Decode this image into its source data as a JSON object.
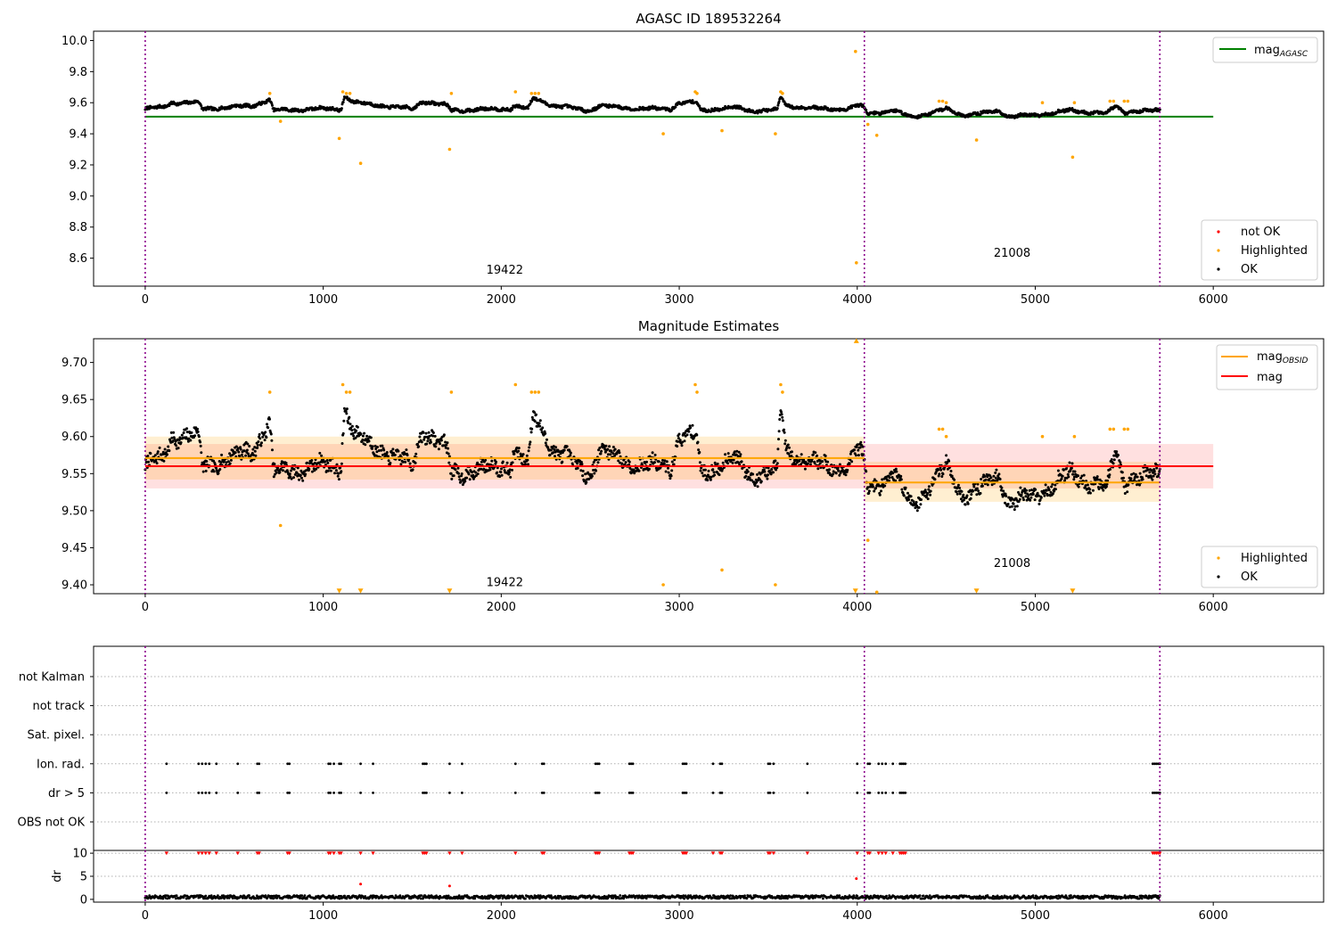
{
  "chart_data": [
    {
      "type": "scatter",
      "title": "AGASC ID 189532264",
      "xlabel": "",
      "ylabel": "",
      "xlim": [
        -290,
        6620
      ],
      "ylim": [
        8.42,
        10.06
      ],
      "xticks": [
        0,
        1000,
        2000,
        3000,
        4000,
        5000,
        6000
      ],
      "yticks": [
        8.6,
        8.8,
        9.0,
        9.2,
        9.4,
        9.6,
        9.8,
        10.0
      ],
      "ytick_labels": [
        "8.6",
        "8.8",
        "9.0",
        "9.2",
        "9.4",
        "9.6",
        "9.8",
        "10.0"
      ],
      "vlines": [
        0,
        4040,
        5700
      ],
      "hline": {
        "name": "magAGASC",
        "label_main": "mag",
        "label_sub": "AGASC",
        "y": 9.51,
        "x": [
          0,
          6000
        ],
        "color": "#008000"
      },
      "obsid_labels": [
        {
          "text": "19422",
          "x": 2020,
          "y": 8.5
        },
        {
          "text": "21008",
          "x": 4870,
          "y": 8.61
        }
      ],
      "legend_top": {
        "placement": "top-right"
      },
      "legend_bottom": {
        "placement": "lower-right",
        "entries": [
          {
            "label": "not OK",
            "color": "#ff0000"
          },
          {
            "label": "Highlighted",
            "color": "#ffa500"
          },
          {
            "label": "OK",
            "color": "#000000"
          }
        ]
      },
      "series": [
        {
          "name": "OK",
          "color": "#000000",
          "model": {
            "start": 0,
            "end": 5700,
            "step": 3,
            "breaks": [
              [
                0,
                9.56
              ],
              [
                100,
                9.57
              ],
              [
                150,
                9.6
              ],
              [
                300,
                9.6
              ],
              [
                320,
                9.56
              ],
              [
                600,
                9.58
              ],
              [
                700,
                9.62
              ],
              [
                720,
                9.55
              ],
              [
                950,
                9.56
              ],
              [
                1100,
                9.56
              ],
              [
                1120,
                9.64
              ],
              [
                1180,
                9.6
              ],
              [
                1500,
                9.56
              ],
              [
                1560,
                9.61
              ],
              [
                1700,
                9.58
              ],
              [
                1720,
                9.55
              ],
              [
                2000,
                9.56
              ],
              [
                2050,
                9.56
              ],
              [
                2070,
                9.58
              ],
              [
                2150,
                9.56
              ],
              [
                2180,
                9.63
              ],
              [
                2300,
                9.58
              ],
              [
                2500,
                9.55
              ],
              [
                2550,
                9.58
              ],
              [
                2800,
                9.56
              ],
              [
                2950,
                9.56
              ],
              [
                3000,
                9.6
              ],
              [
                3100,
                9.6
              ],
              [
                3120,
                9.55
              ],
              [
                3300,
                9.57
              ],
              [
                3400,
                9.55
              ],
              [
                3550,
                9.55
              ],
              [
                3570,
                9.64
              ],
              [
                3600,
                9.58
              ],
              [
                3800,
                9.56
              ],
              [
                3950,
                9.56
              ],
              [
                4000,
                9.58
              ],
              [
                4040,
                9.57
              ],
              [
                4060,
                9.53
              ],
              [
                4200,
                9.55
              ],
              [
                4300,
                9.51
              ],
              [
                4400,
                9.53
              ],
              [
                4500,
                9.56
              ],
              [
                4600,
                9.52
              ],
              [
                4700,
                9.53
              ],
              [
                4800,
                9.55
              ],
              [
                4850,
                9.51
              ],
              [
                5000,
                9.52
              ],
              [
                5200,
                9.55
              ],
              [
                5400,
                9.53
              ],
              [
                5450,
                9.58
              ],
              [
                5500,
                9.54
              ],
              [
                5700,
                9.55
              ]
            ],
            "noise": 0.009,
            "wobble": 0.012,
            "seed": 7
          }
        },
        {
          "name": "Highlighted",
          "color": "#ffa500",
          "points": [
            [
              700,
              9.66
            ],
            [
              760,
              9.48
            ],
            [
              1090,
              9.37
            ],
            [
              1110,
              9.67
            ],
            [
              1130,
              9.66
            ],
            [
              1150,
              9.66
            ],
            [
              1210,
              9.21
            ],
            [
              1710,
              9.3
            ],
            [
              1720,
              9.66
            ],
            [
              2080,
              9.67
            ],
            [
              2170,
              9.66
            ],
            [
              2190,
              9.66
            ],
            [
              2210,
              9.66
            ],
            [
              2910,
              9.4
            ],
            [
              3090,
              9.67
            ],
            [
              3100,
              9.66
            ],
            [
              3240,
              9.42
            ],
            [
              3540,
              9.4
            ],
            [
              3570,
              9.67
            ],
            [
              3580,
              9.66
            ],
            [
              3990,
              9.93
            ],
            [
              3995,
              8.57
            ],
            [
              4060,
              9.46
            ],
            [
              4110,
              9.39
            ],
            [
              4460,
              9.61
            ],
            [
              4480,
              9.61
            ],
            [
              4500,
              9.6
            ],
            [
              4670,
              9.36
            ],
            [
              5040,
              9.6
            ],
            [
              5210,
              9.25
            ],
            [
              5220,
              9.6
            ],
            [
              5420,
              9.61
            ],
            [
              5440,
              9.61
            ],
            [
              5500,
              9.61
            ],
            [
              5520,
              9.61
            ]
          ]
        }
      ]
    },
    {
      "type": "scatter",
      "title": "Magnitude Estimates",
      "xlabel": "",
      "ylabel": "",
      "xlim": [
        -290,
        6620
      ],
      "ylim": [
        9.388,
        9.732
      ],
      "xticks": [
        0,
        1000,
        2000,
        3000,
        4000,
        5000,
        6000
      ],
      "yticks": [
        9.4,
        9.45,
        9.5,
        9.55,
        9.6,
        9.65,
        9.7
      ],
      "ytick_labels": [
        "9.40",
        "9.45",
        "9.50",
        "9.55",
        "9.60",
        "9.65",
        "9.70"
      ],
      "vlines": [
        0,
        4040,
        5700
      ],
      "bands": [
        {
          "y0": 9.53,
          "y1": 9.59,
          "x": [
            0,
            6000
          ],
          "color": "rgba(255,0,0,0.12)"
        },
        {
          "y0": 9.542,
          "y1": 9.6,
          "x": [
            0,
            4040
          ],
          "color": "rgba(255,165,0,0.18)"
        },
        {
          "y0": 9.512,
          "y1": 9.566,
          "x": [
            4040,
            5700
          ],
          "color": "rgba(255,165,0,0.18)"
        }
      ],
      "lines": [
        {
          "name": "magOBSID",
          "color": "#ffa500",
          "segments": [
            [
              0,
              4040,
              9.571
            ],
            [
              4040,
              5700,
              9.538
            ]
          ]
        },
        {
          "name": "mag",
          "color": "#ff0000",
          "segments": [
            [
              0,
              6000,
              9.56
            ]
          ]
        }
      ],
      "obsid_labels": [
        {
          "text": "19422",
          "x": 2020,
          "y": 9.398
        },
        {
          "text": "21008",
          "x": 4870,
          "y": 9.424
        }
      ],
      "legend_top": {
        "placement": "top-right",
        "entries": [
          {
            "label_main": "mag",
            "label_sub": "OBSID",
            "color": "#ffa500"
          },
          {
            "label_main": "mag",
            "label_sub": "",
            "color": "#ff0000"
          }
        ]
      },
      "legend_bottom": {
        "placement": "lower-right",
        "entries": [
          {
            "label": "Highlighted",
            "color": "#ffa500"
          },
          {
            "label": "OK",
            "color": "#000000"
          }
        ]
      },
      "series": [
        {
          "name": "OK",
          "color": "#000000",
          "same_as_top": true
        },
        {
          "name": "Highlighted",
          "color": "#ffa500",
          "same_as_top": true
        },
        {
          "name": "out-of-range",
          "color": "#ffa500",
          "marker": "triangle",
          "points": [
            [
              1090,
              9.392,
              "down"
            ],
            [
              1210,
              9.392,
              "down"
            ],
            [
              1710,
              9.392,
              "down"
            ],
            [
              3990,
              9.392,
              "down"
            ],
            [
              4670,
              9.392,
              "down"
            ],
            [
              5210,
              9.392,
              "down"
            ],
            [
              3995,
              9.729,
              "up"
            ]
          ]
        }
      ]
    },
    {
      "type": "scatter",
      "title": "",
      "xlabel": "",
      "ylabel": "",
      "xlim": [
        -290,
        6620
      ],
      "xticks": [
        0,
        1000,
        2000,
        3000,
        4000,
        5000,
        6000
      ],
      "vlines": [
        0,
        4040,
        5700
      ],
      "flag_rows": [
        "not Kalman",
        "not track",
        "Sat. pixel.",
        "Ion. rad.",
        "dr > 5",
        "OBS not OK"
      ],
      "flag_events": [
        120,
        300,
        320,
        340,
        360,
        400,
        520,
        630,
        640,
        800,
        810,
        1030,
        1040,
        1060,
        1090,
        1100,
        1210,
        1280,
        1560,
        1570,
        1580,
        1710,
        1780,
        2080,
        2230,
        2240,
        2530,
        2540,
        2550,
        2720,
        2730,
        2740,
        3020,
        3030,
        3040,
        3190,
        3230,
        3240,
        3500,
        3510,
        3530,
        3720,
        4000,
        4060,
        4070,
        4120,
        4140,
        4160,
        4200,
        4240,
        4250,
        4260,
        4270,
        5660,
        5670,
        5680,
        5690,
        5700
      ],
      "flag_series": [
        {
          "row": "Ion. rad.",
          "color": "#000000"
        },
        {
          "row": "dr > 5",
          "color": "#000000"
        }
      ]
    },
    {
      "type": "scatter",
      "title": "",
      "xlabel": "",
      "ylabel": "dr",
      "xlim": [
        -290,
        6620
      ],
      "ylim": [
        -0.6,
        10.6
      ],
      "xticks": [
        0,
        1000,
        2000,
        3000,
        4000,
        5000,
        6000
      ],
      "xtick_labels": [
        "0",
        "1000",
        "2000",
        "3000",
        "4000",
        "5000",
        "6000"
      ],
      "yticks": [
        0,
        5,
        10
      ],
      "ytick_labels": [
        "0",
        "5",
        "10"
      ],
      "vlines": [
        0,
        4040,
        5700
      ],
      "series": [
        {
          "name": "dr",
          "color": "#000000",
          "model": {
            "start": 0,
            "end": 5700,
            "step": 4,
            "base": 0.5,
            "noise": 0.35,
            "seed": 13
          }
        },
        {
          "name": "dr capped",
          "color": "#ff0000",
          "marker": "triangle-down",
          "y": 10,
          "same_x_as": "flag_events"
        },
        {
          "name": "dr large",
          "color": "#ff0000",
          "points": [
            [
              1210,
              3.3
            ],
            [
              1710,
              2.9
            ],
            [
              3995,
              4.5
            ]
          ]
        }
      ]
    }
  ]
}
